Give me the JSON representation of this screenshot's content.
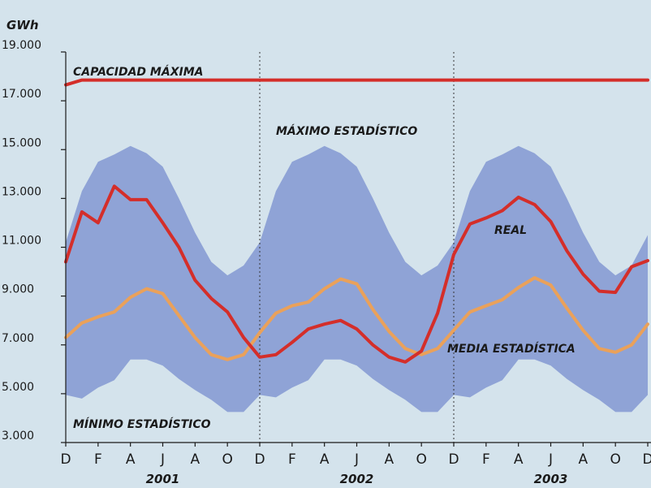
{
  "chart_data": {
    "type": "area",
    "unit_label": "GWh",
    "ylim": [
      3000,
      19000
    ],
    "y_ticks": [
      "3.000",
      "5.000",
      "7.000",
      "9.000",
      "11.000",
      "13.000",
      "15.000",
      "17.000",
      "19.000"
    ],
    "y_tick_values": [
      3000,
      5000,
      7000,
      9000,
      11000,
      13000,
      15000,
      17000,
      19000
    ],
    "x_month_labels": [
      "D",
      "F",
      "A",
      "J",
      "A",
      "O",
      "D",
      "F",
      "A",
      "J",
      "A",
      "O",
      "D",
      "F",
      "A",
      "J",
      "A",
      "O",
      "D"
    ],
    "year_labels": [
      "2001",
      "2002",
      "2003"
    ],
    "year_dividers_at_month_index": [
      12,
      24
    ],
    "series": [
      {
        "name": "CAPACIDAD MÁXIMA",
        "color": "#d42e2a",
        "values": [
          17650,
          17850,
          17850,
          17850,
          17850,
          17850,
          17850,
          17850,
          17850,
          17850,
          17850,
          17850,
          17850,
          17850,
          17850,
          17850,
          17850,
          17850,
          17850,
          17850,
          17850,
          17850,
          17850,
          17850,
          17850,
          17850,
          17850,
          17850,
          17850,
          17850,
          17850,
          17850,
          17850,
          17850,
          17850,
          17850,
          17850
        ]
      },
      {
        "name": "MÁXIMO ESTADÍSTICO",
        "color": "#8fa3d6",
        "values": [
          11200,
          13300,
          14500,
          14800,
          15150,
          14850,
          14300,
          13000,
          11600,
          10400,
          9850,
          10250,
          11200,
          13300,
          14500,
          14800,
          15150,
          14850,
          14300,
          13000,
          11600,
          10400,
          9850,
          10250,
          11200,
          13300,
          14500,
          14800,
          15150,
          14850,
          14300,
          13000,
          11600,
          10400,
          9850,
          10250,
          11500
        ]
      },
      {
        "name": "MÍNIMO ESTADÍSTICO",
        "color": "#8fa3d6",
        "values": [
          4950,
          4800,
          5250,
          5550,
          6400,
          6400,
          6150,
          5600,
          5150,
          4750,
          4250,
          4250,
          4950,
          4850,
          5250,
          5550,
          6400,
          6400,
          6150,
          5600,
          5150,
          4750,
          4250,
          4250,
          4950,
          4850,
          5250,
          5550,
          6400,
          6400,
          6150,
          5600,
          5150,
          4750,
          4250,
          4250,
          4950
        ]
      },
      {
        "name": "MEDIA ESTADÍSTICA",
        "color": "#eaa15a",
        "values": [
          7300,
          7900,
          8150,
          8350,
          8950,
          9300,
          9100,
          8200,
          7300,
          6600,
          6400,
          6600,
          7500,
          8300,
          8600,
          8750,
          9300,
          9700,
          9500,
          8450,
          7550,
          6850,
          6600,
          6850,
          7600,
          8350,
          8600,
          8850,
          9350,
          9750,
          9450,
          8500,
          7600,
          6850,
          6700,
          7000,
          7850
        ]
      },
      {
        "name": "REAL",
        "color": "#d42e2a",
        "values": [
          10400,
          12450,
          12000,
          13500,
          12950,
          12950,
          12000,
          11000,
          9650,
          8900,
          8350,
          7300,
          6500,
          6600,
          7100,
          7650,
          7850,
          8000,
          7650,
          7000,
          6500,
          6300,
          6750,
          8300,
          10700,
          11950,
          12200,
          12500,
          13050,
          12750,
          12050,
          10850,
          9900,
          9200,
          9150,
          10200,
          10450
        ]
      }
    ]
  }
}
